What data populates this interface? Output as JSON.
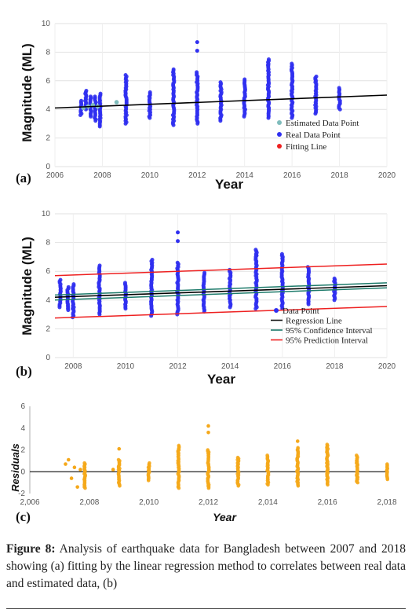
{
  "panels": [
    {
      "label": "(a)",
      "xlabel": "Year",
      "ylabel": "Magnitude (ML)"
    },
    {
      "label": "(b)",
      "xlabel": "Year",
      "ylabel": "Magnitude (ML)"
    },
    {
      "label": "(c)",
      "xlabel": "Year",
      "ylabel": "Residuals"
    }
  ],
  "caption": {
    "figure_label": "Figure 8:",
    "text": "Analysis of earthquake data for Bangladesh between 2007 and 2018 showing (a) fitting by the linear regression method to correlates between real data and estimated data, (b)"
  },
  "colors": {
    "real": "#2f2ff0",
    "estimated": "#7fbcbc",
    "fit_line": "#000000",
    "prediction": "#ee2020",
    "confidence": "#1c7a6a",
    "residual": "#f5a81a"
  },
  "chart_data": [
    {
      "type": "scatter",
      "panel": "a",
      "xlabel": "Year",
      "ylabel": "Magnitude (ML)",
      "xlim": [
        2006,
        2020
      ],
      "ylim": [
        0,
        10
      ],
      "xticks": [
        "2006",
        "2008",
        "2010",
        "2012",
        "2014",
        "2016",
        "2018",
        "2020"
      ],
      "yticks": [
        "0",
        "2",
        "4",
        "6",
        "8",
        "10"
      ],
      "grid": true,
      "legend": {
        "position": "bottom-right",
        "entries": [
          "Estimated Data Point",
          "Real Data Point",
          "Fitting Line"
        ]
      },
      "series": [
        {
          "name": "Real Data Point",
          "columns": [
            {
              "x": 2007.1,
              "min": 3.6,
              "max": 4.6
            },
            {
              "x": 2007.3,
              "min": 4.0,
              "max": 5.3
            },
            {
              "x": 2007.5,
              "min": 3.5,
              "max": 4.9
            },
            {
              "x": 2007.7,
              "min": 3.2,
              "max": 4.9
            },
            {
              "x": 2007.9,
              "min": 2.8,
              "max": 5.1
            },
            {
              "x": 2009.0,
              "min": 3.0,
              "max": 6.4
            },
            {
              "x": 2010.0,
              "min": 3.4,
              "max": 5.2
            },
            {
              "x": 2011.0,
              "min": 2.9,
              "max": 6.8
            },
            {
              "x": 2012.0,
              "min": 3.0,
              "max": 6.6
            },
            {
              "x": 2013.0,
              "min": 3.2,
              "max": 5.9
            },
            {
              "x": 2014.0,
              "min": 3.5,
              "max": 6.1
            },
            {
              "x": 2015.0,
              "min": 3.4,
              "max": 7.5
            },
            {
              "x": 2016.0,
              "min": 3.4,
              "max": 7.2
            },
            {
              "x": 2017.0,
              "min": 3.7,
              "max": 6.3
            },
            {
              "x": 2018.0,
              "min": 4.0,
              "max": 5.5
            }
          ],
          "outliers": [
            {
              "x": 2012.0,
              "y": 8.7
            },
            {
              "x": 2012.0,
              "y": 8.1
            },
            {
              "x": 2015.0,
              "y": 7.1
            },
            {
              "x": 2016.0,
              "y": 6.9
            }
          ]
        },
        {
          "name": "Estimated Data Point",
          "points": [
            {
              "x": 2007.2,
              "y": 4.1
            },
            {
              "x": 2007.4,
              "y": 4.2
            },
            {
              "x": 2007.6,
              "y": 4.3
            },
            {
              "x": 2007.8,
              "y": 4.2
            },
            {
              "x": 2008.6,
              "y": 4.5
            }
          ]
        },
        {
          "name": "Fitting Line",
          "line": [
            {
              "x": 2006,
              "y": 4.1
            },
            {
              "x": 2020,
              "y": 5.0
            }
          ]
        }
      ]
    },
    {
      "type": "scatter",
      "panel": "b",
      "xlabel": "Year",
      "ylabel": "Magnitude (ML)",
      "xlim": [
        2007.3,
        2020
      ],
      "ylim": [
        0,
        10
      ],
      "xticks": [
        "2008",
        "2010",
        "2012",
        "2014",
        "2016",
        "2018",
        "2020"
      ],
      "yticks": [
        "0",
        "2",
        "4",
        "6",
        "8",
        "10"
      ],
      "grid": true,
      "legend": {
        "position": "bottom-right",
        "entries": [
          "Data Point",
          "Regression Line",
          "95% Confidence Interval",
          "95% Prediction Interval"
        ]
      },
      "series": [
        {
          "name": "Data Point",
          "columns": [
            {
              "x": 2007.5,
              "min": 3.5,
              "max": 5.4
            },
            {
              "x": 2007.8,
              "min": 3.3,
              "max": 4.9
            },
            {
              "x": 2008.0,
              "min": 2.8,
              "max": 5.1
            },
            {
              "x": 2009.0,
              "min": 3.0,
              "max": 6.4
            },
            {
              "x": 2010.0,
              "min": 3.4,
              "max": 5.2
            },
            {
              "x": 2011.0,
              "min": 2.9,
              "max": 6.8
            },
            {
              "x": 2012.0,
              "min": 3.0,
              "max": 6.6
            },
            {
              "x": 2013.0,
              "min": 3.2,
              "max": 5.9
            },
            {
              "x": 2014.0,
              "min": 3.5,
              "max": 6.1
            },
            {
              "x": 2015.0,
              "min": 3.4,
              "max": 7.5
            },
            {
              "x": 2016.0,
              "min": 3.4,
              "max": 7.2
            },
            {
              "x": 2017.0,
              "min": 3.7,
              "max": 6.3
            },
            {
              "x": 2018.0,
              "min": 4.0,
              "max": 5.5
            }
          ],
          "outliers": [
            {
              "x": 2012.0,
              "y": 8.7
            },
            {
              "x": 2012.0,
              "y": 8.1
            },
            {
              "x": 2015.0,
              "y": 7.1
            },
            {
              "x": 2016.0,
              "y": 6.9
            }
          ]
        },
        {
          "name": "Regression Line",
          "line": [
            {
              "x": 2007.3,
              "y": 4.2
            },
            {
              "x": 2020,
              "y": 5.0
            }
          ]
        },
        {
          "name": "95% Confidence Interval",
          "lines": [
            [
              {
                "x": 2007.3,
                "y": 4.0
              },
              {
                "x": 2020,
                "y": 4.85
              }
            ],
            [
              {
                "x": 2007.3,
                "y": 4.35
              },
              {
                "x": 2020,
                "y": 5.2
              }
            ]
          ]
        },
        {
          "name": "95% Prediction Interval",
          "lines": [
            [
              {
                "x": 2007.3,
                "y": 2.75
              },
              {
                "x": 2020,
                "y": 3.55
              }
            ],
            [
              {
                "x": 2007.3,
                "y": 5.7
              },
              {
                "x": 2020,
                "y": 6.5
              }
            ]
          ]
        }
      ]
    },
    {
      "type": "scatter",
      "panel": "c",
      "xlabel": "Year",
      "ylabel": "Residuals",
      "xlim": [
        2006,
        2018
      ],
      "ylim": [
        -2,
        6
      ],
      "xticks": [
        "2,006",
        "2,008",
        "2,010",
        "2,012",
        "2,014",
        "2,016",
        "2,018"
      ],
      "yticks": [
        "-2",
        "0",
        "2",
        "4",
        "6"
      ],
      "grid": false,
      "series": [
        {
          "name": "",
          "columns": [
            {
              "x": 2007.85,
              "min": -1.5,
              "max": 0.8
            },
            {
              "x": 2009.0,
              "min": -1.3,
              "max": 1.1
            },
            {
              "x": 2010.0,
              "min": -0.8,
              "max": 0.8
            },
            {
              "x": 2011.0,
              "min": -1.5,
              "max": 2.4
            },
            {
              "x": 2012.0,
              "min": -1.5,
              "max": 2.0
            },
            {
              "x": 2013.0,
              "min": -1.3,
              "max": 1.3
            },
            {
              "x": 2014.0,
              "min": -1.2,
              "max": 1.5
            },
            {
              "x": 2015.0,
              "min": -1.3,
              "max": 2.2
            },
            {
              "x": 2016.0,
              "min": -1.2,
              "max": 2.5
            },
            {
              "x": 2017.0,
              "min": -1.0,
              "max": 1.5
            },
            {
              "x": 2018.0,
              "min": -0.7,
              "max": 0.7
            }
          ],
          "outliers": [
            {
              "x": 2012.0,
              "y": 4.2
            },
            {
              "x": 2012.0,
              "y": 3.6
            },
            {
              "x": 2015.0,
              "y": 2.8
            },
            {
              "x": 2009.0,
              "y": 2.1
            },
            {
              "x": 2007.2,
              "y": 0.7
            },
            {
              "x": 2007.3,
              "y": 1.1
            },
            {
              "x": 2007.5,
              "y": 0.4
            },
            {
              "x": 2007.6,
              "y": -1.4
            },
            {
              "x": 2007.7,
              "y": 0.2
            },
            {
              "x": 2007.4,
              "y": -0.6
            },
            {
              "x": 2008.8,
              "y": 0.2
            }
          ]
        },
        {
          "name": "",
          "line": [
            {
              "x": 2006,
              "y": 0
            },
            {
              "x": 2018,
              "y": 0
            }
          ]
        }
      ]
    }
  ]
}
